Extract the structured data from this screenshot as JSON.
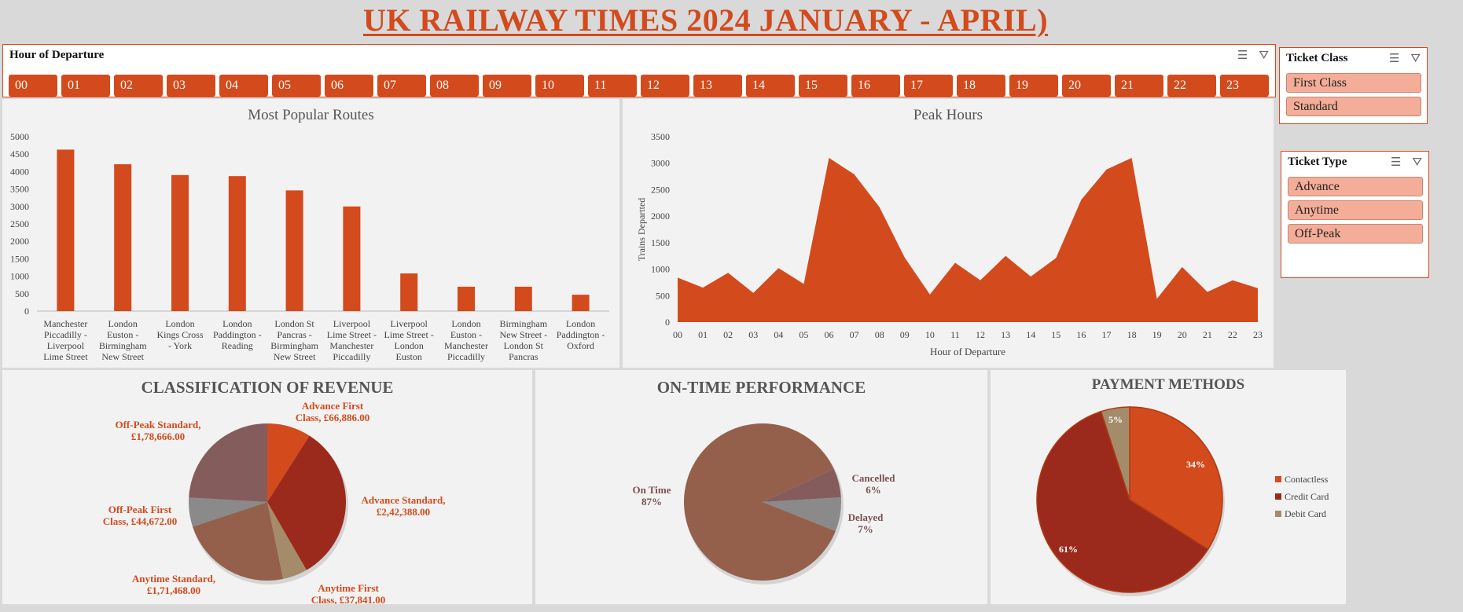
{
  "title": "UK RAILWAY TIMES 2024 JANUARY - APRIL)",
  "hour_slicer": {
    "label": "Hour of Departure",
    "hours": [
      "00",
      "01",
      "02",
      "03",
      "04",
      "05",
      "06",
      "07",
      "08",
      "09",
      "10",
      "11",
      "12",
      "13",
      "14",
      "15",
      "16",
      "17",
      "18",
      "19",
      "20",
      "21",
      "22",
      "23"
    ]
  },
  "ticket_class_slicer": {
    "label": "Ticket Class",
    "options": [
      "First Class",
      "Standard"
    ]
  },
  "ticket_type_slicer": {
    "label": "Ticket Type",
    "options": [
      "Advance",
      "Anytime",
      "Off-Peak"
    ]
  },
  "slicer_icons": [
    "multi-select-icon",
    "clear-filter-icon"
  ],
  "colors": {
    "accent": "#d34a1c",
    "option_fill": "#f3ad98",
    "panel": "#f2f2f2"
  },
  "chart_data": [
    {
      "type": "bar",
      "title": "Most Popular Routes",
      "categories": [
        [
          "Manchester",
          "Piccadilly -",
          "Liverpool",
          "Lime Street"
        ],
        [
          "London",
          "Euston -",
          "Birmingham",
          "New Street"
        ],
        [
          "London",
          "Kings Cross",
          "- York"
        ],
        [
          "London",
          "Paddington -",
          "Reading"
        ],
        [
          "London St",
          "Pancras -",
          "Birmingham",
          "New Street"
        ],
        [
          "Liverpool",
          "Lime Street -",
          "Manchester",
          "Piccadilly"
        ],
        [
          "Liverpool",
          "Lime Street -",
          "London",
          "Euston"
        ],
        [
          "London",
          "Euston -",
          "Manchester",
          "Piccadilly"
        ],
        [
          "Birmingham",
          "New Street -",
          "London St",
          "Pancras"
        ],
        [
          "London",
          "Paddington -",
          "Oxford"
        ]
      ],
      "values": [
        4630,
        4210,
        3900,
        3870,
        3460,
        3000,
        1080,
        700,
        700,
        470
      ],
      "ylim": [
        0,
        5000
      ],
      "yticks": [
        "0",
        "500",
        "1000",
        "1500",
        "2000",
        "2500",
        "3000",
        "3500",
        "4000",
        "4500",
        "5000"
      ],
      "color": "#d34a1c"
    },
    {
      "type": "area",
      "title": "Peak Hours",
      "xlabel": "Hour of Departure",
      "ylabel": "Trains Departted",
      "x": [
        "00",
        "01",
        "02",
        "03",
        "04",
        "05",
        "06",
        "07",
        "08",
        "09",
        "10",
        "11",
        "12",
        "13",
        "14",
        "15",
        "16",
        "17",
        "18",
        "19",
        "20",
        "21",
        "22",
        "23"
      ],
      "values": [
        840,
        650,
        930,
        550,
        1020,
        720,
        3100,
        2790,
        2170,
        1220,
        520,
        1120,
        790,
        1250,
        860,
        1210,
        2310,
        2880,
        3100,
        440,
        1040,
        570,
        790,
        640
      ],
      "ylim": [
        0,
        3500
      ],
      "yticks": [
        "0",
        "500",
        "1000",
        "1500",
        "2000",
        "2500",
        "3000",
        "3500"
      ],
      "color": "#d34a1c"
    },
    {
      "type": "pie",
      "title": "CLASSIFICATION OF REVENUE",
      "slices": [
        {
          "name": "Advance First Class",
          "value": 66886,
          "label": [
            "Advance First",
            "Class,  £66,886.00"
          ],
          "color": "#d34a1c"
        },
        {
          "name": "Advance Standard",
          "value": 242388,
          "label": [
            "Advance Standard,",
            "£2,42,388.00"
          ],
          "color": "#9c2a1c"
        },
        {
          "name": "Anytime First Class",
          "value": 37841,
          "label": [
            "Anytime First",
            "Class,  £37,841.00"
          ],
          "color": "#a48b6a"
        },
        {
          "name": "Anytime Standard",
          "value": 171468,
          "label": [
            "Anytime Standard,",
            "£1,71,468.00"
          ],
          "color": "#94604c"
        },
        {
          "name": "Off-Peak First Class",
          "value": 44672,
          "label": [
            "Off-Peak First",
            "Class,  £44,672.00"
          ],
          "color": "#8a8a8a"
        },
        {
          "name": "Off-Peak Standard",
          "value": 178666,
          "label": [
            "Off-Peak Standard,",
            "£1,78,666.00"
          ],
          "color": "#855c5c"
        }
      ]
    },
    {
      "type": "pie",
      "title": "ON-TIME PERFORMANCE",
      "slices": [
        {
          "name": "Cancelled",
          "value": 6,
          "label": [
            "Cancelled",
            "6%"
          ],
          "color": "#855c5c"
        },
        {
          "name": "Delayed",
          "value": 7,
          "label": [
            "Delayed",
            "7%"
          ],
          "color": "#8a8a8a"
        },
        {
          "name": "On Time",
          "value": 87,
          "label": [
            "On Time",
            "87%"
          ],
          "color": "#94604c"
        }
      ]
    },
    {
      "type": "pie",
      "title": "PAYMENT METHODS",
      "slices": [
        {
          "name": "Contactless",
          "value": 34,
          "label": "34%",
          "color": "#d34a1c"
        },
        {
          "name": "Credit Card",
          "value": 61,
          "label": "61%",
          "color": "#9c2a1c"
        },
        {
          "name": "Debit Card",
          "value": 5,
          "label": "5%",
          "color": "#a48b6a"
        }
      ],
      "legend": [
        "Contactless",
        "Credit Card",
        "Debit Card"
      ],
      "legend_position": "right"
    }
  ]
}
